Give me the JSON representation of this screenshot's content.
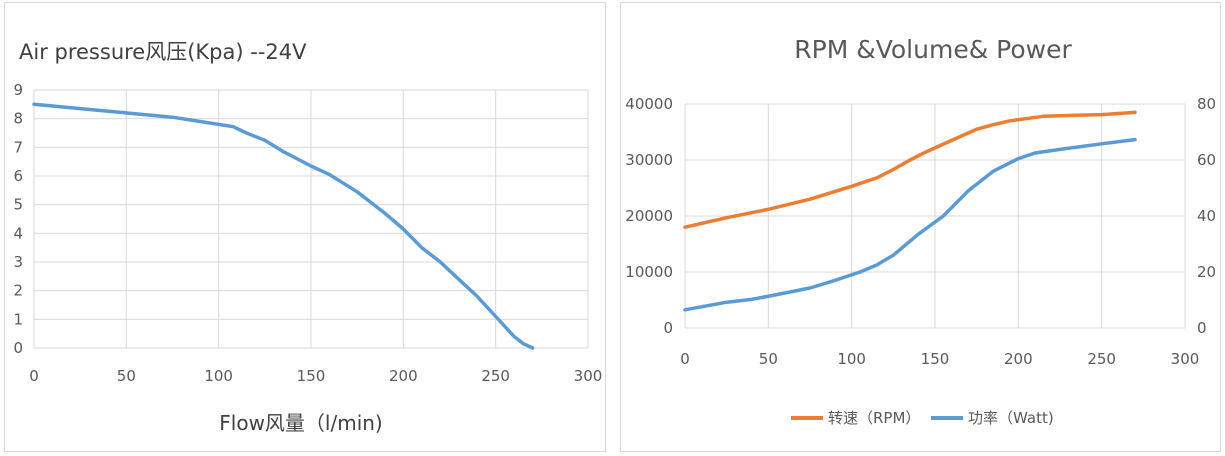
{
  "chart_data": [
    {
      "type": "line",
      "title": "Air pressure风压(Kpa)  --24V",
      "xlabel": "Flow风量（l/min)",
      "ylabel": "",
      "xlim": [
        0,
        300
      ],
      "ylim": [
        0,
        9
      ],
      "xticks": [
        "0",
        "50",
        "100",
        "150",
        "200",
        "250",
        "300"
      ],
      "yticks": [
        "0",
        "1",
        "2",
        "3",
        "4",
        "5",
        "6",
        "7",
        "8",
        "9"
      ],
      "grid": true,
      "series": [
        {
          "color": "#5b9bd5",
          "x": [
            0,
            25,
            50,
            75,
            100,
            108,
            115,
            125,
            135,
            150,
            160,
            175,
            190,
            200,
            210,
            220,
            230,
            240,
            250,
            260,
            265,
            270
          ],
          "y": [
            8.5,
            8.35,
            8.2,
            8.05,
            7.8,
            7.72,
            7.5,
            7.25,
            6.85,
            6.35,
            6.05,
            5.45,
            4.7,
            4.15,
            3.5,
            3.0,
            2.4,
            1.8,
            1.1,
            0.4,
            0.15,
            0.0
          ]
        }
      ]
    },
    {
      "type": "line",
      "title": "RPM &Volume& Power",
      "xlim": [
        0,
        300
      ],
      "ylim": [
        0,
        40000
      ],
      "y2lim": [
        0,
        80
      ],
      "xticks": [
        "0",
        "50",
        "100",
        "150",
        "200",
        "250",
        "300"
      ],
      "yticks": [
        "0",
        "10000",
        "20000",
        "30000",
        "40000"
      ],
      "y2ticks": [
        "0",
        "20",
        "40",
        "60",
        "80"
      ],
      "grid": true,
      "legend_position": "bottom",
      "series": [
        {
          "name": "转速（RPM）",
          "axis": "left",
          "color": "#ed7d31",
          "x": [
            0,
            25,
            50,
            75,
            100,
            115,
            125,
            135,
            145,
            160,
            175,
            185,
            195,
            215,
            235,
            250,
            270
          ],
          "y": [
            18000,
            19700,
            21200,
            23000,
            25300,
            26800,
            28300,
            30000,
            31500,
            33500,
            35500,
            36300,
            37000,
            37800,
            38000,
            38100,
            38500
          ]
        },
        {
          "name": "功率（Watt)",
          "axis": "right",
          "color": "#5b9bd5",
          "x": [
            0,
            25,
            40,
            60,
            75,
            90,
            105,
            115,
            125,
            140,
            155,
            170,
            185,
            200,
            210,
            225,
            250,
            270
          ],
          "y": [
            6.5,
            9.2,
            10.2,
            12.5,
            14.3,
            17.0,
            20.0,
            22.5,
            26.0,
            33.5,
            40.0,
            49.0,
            56.0,
            60.5,
            62.5,
            63.8,
            65.8,
            67.3
          ]
        }
      ]
    }
  ]
}
